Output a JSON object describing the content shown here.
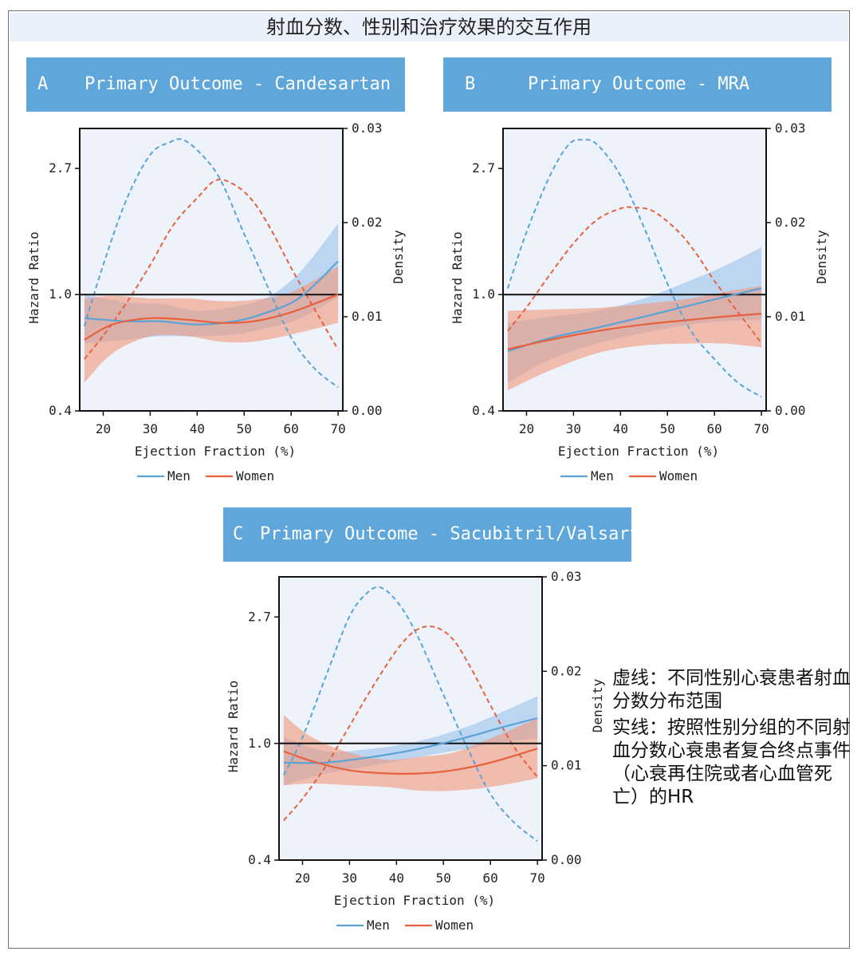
{
  "banner": {
    "title": "射血分数、性别和治疗效果的交互作用"
  },
  "note": {
    "dashed": "虚线：不同性别心衰患者射血分数分布范围",
    "solid": "实线：按照性别分组的不同射血分数心衰患者复合终点事件（心衰再住院或者心血管死亡）的HR"
  },
  "colors": {
    "men": "#5aa3d6",
    "women": "#e8603c",
    "men_band": "#9dc3eb",
    "women_band": "#ef9a7e",
    "panel_bg": "#eef3fb",
    "header": "#5fa7db"
  },
  "chart_data": [
    {
      "panel": "A",
      "title": "Primary Outcome - Candesartan",
      "type": "line",
      "xlabel": "Ejection Fraction (%)",
      "ylabel": "Hazard Ratio",
      "ylabel2": "Density",
      "xlim": [
        15,
        71
      ],
      "xticks": [
        20,
        30,
        40,
        50,
        60,
        70
      ],
      "ylim": [
        0.4,
        3.7
      ],
      "yscale": "log",
      "yticks": [
        {
          "v": 0.4,
          "label": "0.4"
        },
        {
          "v": 1.0,
          "label": "1.0"
        },
        {
          "v": 2.7,
          "label": "2.7"
        }
      ],
      "y2lim": [
        0,
        0.03
      ],
      "y2ticks": [
        {
          "v": 0,
          "label": "0.00"
        },
        {
          "v": 0.01,
          "label": "0.01"
        },
        {
          "v": 0.02,
          "label": "0.02"
        },
        {
          "v": 0.03,
          "label": "0.03"
        }
      ],
      "refline": 1.0,
      "legend": [
        "Men",
        "Women"
      ],
      "hr_series": [
        {
          "name": "Men",
          "x": [
            16,
            25,
            32,
            40,
            48,
            55,
            62,
            70
          ],
          "y": [
            0.83,
            0.81,
            0.81,
            0.79,
            0.81,
            0.87,
            0.98,
            1.3
          ],
          "lower": [
            0.68,
            0.7,
            0.72,
            0.72,
            0.73,
            0.77,
            0.83,
            0.98
          ],
          "upper": [
            1.0,
            0.94,
            0.93,
            0.88,
            0.91,
            0.98,
            1.2,
            1.75
          ]
        },
        {
          "name": "Women",
          "x": [
            16,
            22,
            30,
            38,
            45,
            52,
            60,
            70
          ],
          "y": [
            0.7,
            0.79,
            0.83,
            0.82,
            0.8,
            0.81,
            0.87,
            1.0
          ],
          "lower": [
            0.5,
            0.63,
            0.72,
            0.72,
            0.69,
            0.69,
            0.73,
            0.8
          ],
          "upper": [
            0.97,
            0.99,
            0.97,
            0.97,
            0.95,
            0.96,
            1.02,
            1.25
          ]
        }
      ],
      "density_series": [
        {
          "name": "Men",
          "x": [
            16,
            20,
            25,
            30,
            34,
            37,
            41,
            45,
            50,
            55,
            60,
            65,
            70
          ],
          "y": [
            0.009,
            0.0155,
            0.0225,
            0.0272,
            0.0285,
            0.0288,
            0.0272,
            0.0245,
            0.0188,
            0.0132,
            0.0078,
            0.0045,
            0.0025
          ]
        },
        {
          "name": "Women",
          "x": [
            16,
            20,
            25,
            30,
            35,
            40,
            44,
            48,
            52,
            56,
            60,
            65,
            70
          ],
          "y": [
            0.0055,
            0.008,
            0.0115,
            0.0155,
            0.0198,
            0.0226,
            0.0245,
            0.024,
            0.0222,
            0.019,
            0.0152,
            0.0108,
            0.0065
          ]
        }
      ]
    },
    {
      "panel": "B",
      "title": "Primary Outcome - MRA",
      "type": "line",
      "xlabel": "Ejection Fraction (%)",
      "ylabel": "Hazard Ratio",
      "ylabel2": "Density",
      "xlim": [
        15,
        71
      ],
      "xticks": [
        20,
        30,
        40,
        50,
        60,
        70
      ],
      "ylim": [
        0.4,
        3.7
      ],
      "yscale": "log",
      "yticks": [
        {
          "v": 0.4,
          "label": "0.4"
        },
        {
          "v": 1.0,
          "label": "1.0"
        },
        {
          "v": 2.7,
          "label": "2.7"
        }
      ],
      "y2lim": [
        0,
        0.03
      ],
      "y2ticks": [
        {
          "v": 0,
          "label": "0.00"
        },
        {
          "v": 0.01,
          "label": "0.01"
        },
        {
          "v": 0.02,
          "label": "0.02"
        },
        {
          "v": 0.03,
          "label": "0.03"
        }
      ],
      "refline": 1.0,
      "legend": [
        "Men",
        "Women"
      ],
      "hr_series": [
        {
          "name": "Men",
          "x": [
            16,
            25,
            35,
            45,
            55,
            62,
            70
          ],
          "y": [
            0.64,
            0.71,
            0.77,
            0.84,
            0.92,
            0.98,
            1.05
          ],
          "lower": [
            0.5,
            0.6,
            0.68,
            0.74,
            0.79,
            0.81,
            0.82
          ],
          "upper": [
            0.8,
            0.84,
            0.88,
            0.97,
            1.12,
            1.25,
            1.45
          ]
        },
        {
          "name": "Women",
          "x": [
            16,
            25,
            35,
            45,
            55,
            62,
            70
          ],
          "y": [
            0.65,
            0.7,
            0.75,
            0.79,
            0.82,
            0.84,
            0.86
          ],
          "lower": [
            0.47,
            0.55,
            0.63,
            0.67,
            0.68,
            0.68,
            0.66
          ],
          "upper": [
            0.88,
            0.89,
            0.9,
            0.93,
            0.97,
            1.02,
            1.07
          ]
        }
      ],
      "density_series": [
        {
          "name": "Men",
          "x": [
            16,
            20,
            25,
            29,
            32,
            35,
            40,
            45,
            50,
            55,
            60,
            65,
            70
          ],
          "y": [
            0.013,
            0.019,
            0.025,
            0.0283,
            0.0288,
            0.0283,
            0.025,
            0.0195,
            0.0135,
            0.0085,
            0.0055,
            0.003,
            0.0015
          ]
        },
        {
          "name": "Women",
          "x": [
            16,
            20,
            25,
            30,
            35,
            40,
            43,
            47,
            52,
            56,
            60,
            65,
            70
          ],
          "y": [
            0.0085,
            0.011,
            0.0145,
            0.0178,
            0.0203,
            0.0215,
            0.0216,
            0.0212,
            0.0192,
            0.0168,
            0.0138,
            0.0105,
            0.0072
          ]
        }
      ]
    },
    {
      "panel": "C",
      "title": "Primary Outcome - Sacubitril/Valsartan",
      "type": "line",
      "xlabel": "Ejection Fraction (%)",
      "ylabel": "Hazard Ratio",
      "ylabel2": "Density",
      "xlim": [
        15,
        71
      ],
      "xticks": [
        20,
        30,
        40,
        50,
        60,
        70
      ],
      "ylim": [
        0.4,
        3.7
      ],
      "yscale": "log",
      "yticks": [
        {
          "v": 0.4,
          "label": "0.4"
        },
        {
          "v": 1.0,
          "label": "1.0"
        },
        {
          "v": 2.7,
          "label": "2.7"
        }
      ],
      "y2lim": [
        0,
        0.03
      ],
      "y2ticks": [
        {
          "v": 0,
          "label": "0.00"
        },
        {
          "v": 0.01,
          "label": "0.01"
        },
        {
          "v": 0.02,
          "label": "0.02"
        },
        {
          "v": 0.03,
          "label": "0.03"
        }
      ],
      "refline": 1.0,
      "legend": [
        "Men",
        "Women"
      ],
      "hr_series": [
        {
          "name": "Men",
          "x": [
            16,
            25,
            35,
            45,
            55,
            62,
            70
          ],
          "y": [
            0.86,
            0.86,
            0.9,
            0.96,
            1.05,
            1.13,
            1.22
          ],
          "lower": [
            0.72,
            0.79,
            0.84,
            0.9,
            0.96,
            1.01,
            1.04
          ],
          "upper": [
            1.05,
            0.94,
            0.96,
            1.02,
            1.14,
            1.27,
            1.45
          ]
        },
        {
          "name": "Women",
          "x": [
            16,
            22,
            30,
            38,
            45,
            52,
            60,
            70
          ],
          "y": [
            0.94,
            0.87,
            0.81,
            0.79,
            0.79,
            0.81,
            0.86,
            0.96
          ],
          "lower": [
            0.72,
            0.73,
            0.72,
            0.71,
            0.69,
            0.69,
            0.71,
            0.76
          ],
          "upper": [
            1.25,
            1.05,
            0.93,
            0.88,
            0.9,
            0.93,
            1.04,
            1.22
          ]
        }
      ],
      "density_series": [
        {
          "name": "Men",
          "x": [
            16,
            20,
            25,
            30,
            34,
            37,
            41,
            45,
            50,
            55,
            60,
            65,
            70
          ],
          "y": [
            0.009,
            0.013,
            0.0195,
            0.0258,
            0.0284,
            0.0288,
            0.0268,
            0.0232,
            0.0175,
            0.012,
            0.007,
            0.004,
            0.002
          ]
        },
        {
          "name": "Women",
          "x": [
            16,
            20,
            25,
            30,
            35,
            40,
            44,
            48,
            52,
            56,
            60,
            65,
            70
          ],
          "y": [
            0.0042,
            0.0065,
            0.01,
            0.0142,
            0.0184,
            0.0222,
            0.0243,
            0.0247,
            0.0234,
            0.0202,
            0.0164,
            0.012,
            0.0088
          ]
        }
      ]
    }
  ]
}
